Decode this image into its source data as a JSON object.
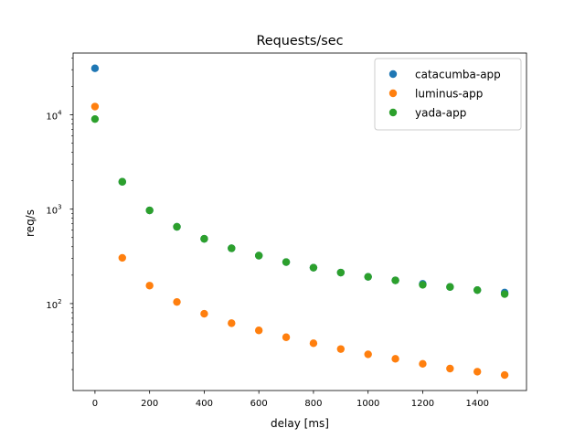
{
  "chart_data": {
    "type": "scatter",
    "title": "Requests/sec",
    "xlabel": "delay [ms]",
    "ylabel": "req/s",
    "xlim": [
      -80,
      1580
    ],
    "ylim": [
      12,
      45000
    ],
    "yscale": "log",
    "grid": false,
    "legend_position": "top-right",
    "x_ticks": [
      0,
      200,
      400,
      600,
      800,
      1000,
      1200,
      1400
    ],
    "y_ticks": [
      {
        "value": 100,
        "base": "10",
        "exp": "2"
      },
      {
        "value": 1000,
        "base": "10",
        "exp": "3"
      },
      {
        "value": 10000,
        "base": "10",
        "exp": "4"
      }
    ],
    "x": [
      0,
      100,
      200,
      300,
      400,
      500,
      600,
      700,
      800,
      900,
      1000,
      1100,
      1200,
      1300,
      1400,
      1500
    ],
    "series": [
      {
        "name": "catacumba-app",
        "color": "#1f77b4",
        "values": [
          31000,
          1950,
          970,
          650,
          485,
          385,
          322,
          275,
          240,
          213,
          192,
          176,
          162,
          150,
          139,
          131
        ]
      },
      {
        "name": "luminus-app",
        "color": "#ff7f0e",
        "values": [
          12200,
          305,
          155,
          104,
          78,
          62,
          52,
          44,
          38,
          33,
          29,
          26,
          23,
          20.5,
          19,
          17.5
        ]
      },
      {
        "name": "yada-app",
        "color": "#2ca02c",
        "values": [
          9000,
          1950,
          970,
          650,
          485,
          385,
          322,
          275,
          240,
          213,
          192,
          176,
          158,
          150,
          139,
          126
        ]
      }
    ]
  }
}
